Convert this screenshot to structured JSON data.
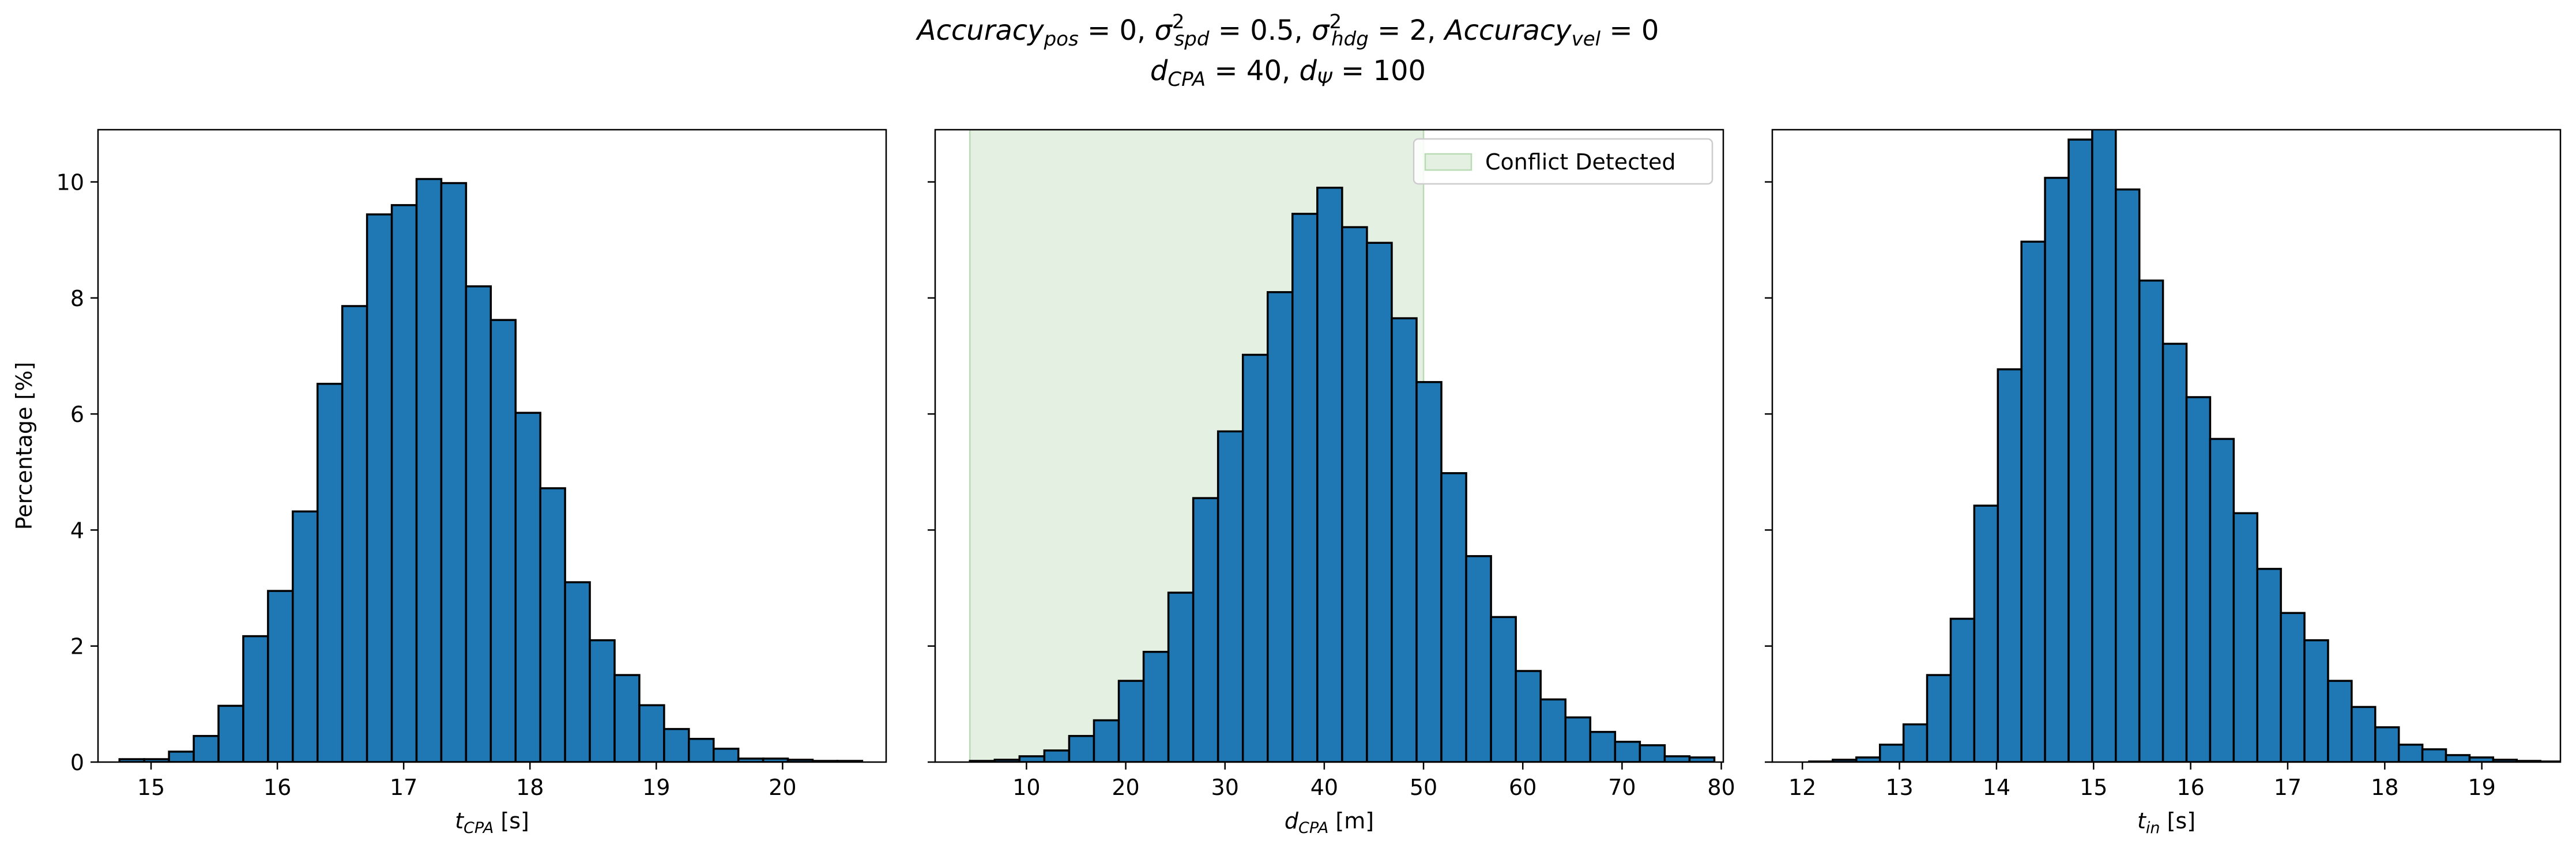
{
  "title": {
    "line1": [
      {
        "t": "Accuracy",
        "i": true
      },
      {
        "sub": "pos"
      },
      {
        "t": " = 0, "
      },
      {
        "t": "σ",
        "i": true
      },
      {
        "sub": "spd",
        "sup": "2"
      },
      {
        "t": " = 0.5, "
      },
      {
        "t": "σ",
        "i": true
      },
      {
        "sub": "hdg",
        "sup": "2"
      },
      {
        "t": " = 2, "
      },
      {
        "t": "Accuracy",
        "i": true
      },
      {
        "sub": "vel"
      },
      {
        "t": " = 0"
      }
    ],
    "line2": [
      {
        "t": "d",
        "i": true
      },
      {
        "sub": "CPA"
      },
      {
        "t": " = 40, "
      },
      {
        "t": "d",
        "i": true
      },
      {
        "sub": "Ψ"
      },
      {
        "t": " = 100"
      }
    ]
  },
  "colors": {
    "bar_fill": "#1f77b4",
    "bar_edge": "#000000",
    "shade_fill": "#e4f0e2",
    "shade_edge": "#b8dbb4"
  },
  "chart_data": [
    {
      "type": "bar",
      "ylabel": "Percentage [%]",
      "xlabel_main": "t",
      "xlabel_sub": "CPA",
      "xlabel_unit": " [s]",
      "xlim": [
        14.58,
        20.82
      ],
      "ylim": [
        0,
        10.9
      ],
      "xticks": [
        15,
        16,
        17,
        18,
        19,
        20
      ],
      "yticks": [
        0,
        2,
        4,
        6,
        8,
        10
      ],
      "bin_start": 14.75,
      "bin_width": 0.196,
      "values": [
        0.05,
        0.05,
        0.18,
        0.45,
        0.97,
        2.17,
        2.95,
        4.32,
        6.52,
        7.86,
        9.44,
        9.6,
        10.05,
        9.98,
        8.2,
        7.62,
        6.02,
        4.72,
        3.1,
        2.1,
        1.5,
        0.98,
        0.57,
        0.4,
        0.23,
        0.06,
        0.06,
        0.04,
        0.02,
        0.02
      ]
    },
    {
      "type": "bar",
      "xlabel_main": "d",
      "xlabel_sub": "CPA",
      "xlabel_unit": " [m]",
      "xlim": [
        0.8,
        80.2
      ],
      "ylim": [
        0,
        10.9
      ],
      "xticks": [
        10,
        20,
        30,
        40,
        50,
        60,
        70,
        80
      ],
      "yticks": [
        0,
        2,
        4,
        6,
        8,
        10
      ],
      "bin_start": 4.3,
      "bin_width": 2.5,
      "values": [
        0.02,
        0.04,
        0.1,
        0.2,
        0.45,
        0.72,
        1.4,
        1.9,
        2.92,
        4.55,
        5.7,
        7.02,
        8.1,
        9.45,
        9.9,
        9.22,
        8.95,
        7.65,
        6.55,
        4.98,
        3.55,
        2.5,
        1.57,
        1.08,
        0.77,
        0.52,
        0.35,
        0.29,
        0.1,
        0.08
      ],
      "shade": [
        4.3,
        50
      ],
      "legend": "Conflict Detected"
    },
    {
      "type": "bar",
      "xlabel_main": "t",
      "xlabel_sub": "in",
      "xlabel_unit": " [s]",
      "xlim": [
        11.69,
        19.81
      ],
      "ylim": [
        0,
        10.9
      ],
      "xticks": [
        12,
        13,
        14,
        15,
        16,
        17,
        18,
        19
      ],
      "yticks": [
        0,
        2,
        4,
        6,
        8,
        10
      ],
      "bin_start": 12.07,
      "bin_width": 0.243,
      "values": [
        0.01,
        0.04,
        0.08,
        0.3,
        0.65,
        1.5,
        2.47,
        4.42,
        6.77,
        8.97,
        10.07,
        10.73,
        10.95,
        9.87,
        8.3,
        7.21,
        6.29,
        5.57,
        4.29,
        3.33,
        2.57,
        2.1,
        1.4,
        0.95,
        0.6,
        0.3,
        0.22,
        0.12,
        0.08,
        0.04,
        0.02,
        0.01,
        0.01,
        0.01,
        0.01
      ]
    }
  ]
}
